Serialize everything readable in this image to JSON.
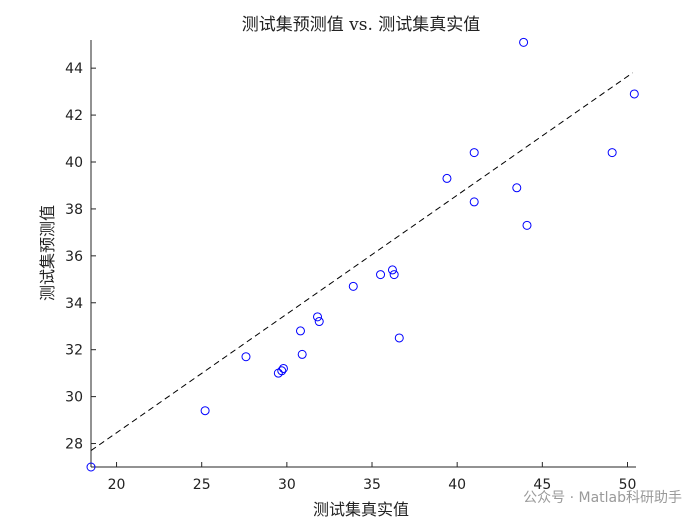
{
  "watermark": "公众号 · Matlab科研助手",
  "chart_data": {
    "type": "scatter",
    "title": "测试集预测值 vs. 测试集真实值",
    "xlabel": "测试集真实值",
    "ylabel": "测试集预测值",
    "xlim": [
      18.5,
      50.5
    ],
    "ylim": [
      27,
      45.2
    ],
    "xticks": [
      20,
      25,
      30,
      35,
      40,
      45,
      50
    ],
    "yticks": [
      28,
      30,
      32,
      34,
      36,
      38,
      40,
      42,
      44
    ],
    "grid": false,
    "marker_color": "#0000ff",
    "reference_line": {
      "style": "dashed",
      "color": "#000000",
      "points": [
        [
          18.5,
          27.7
        ],
        [
          50.3,
          43.8
        ]
      ]
    },
    "points": [
      {
        "x": 18.5,
        "y": 27.0
      },
      {
        "x": 25.2,
        "y": 29.4
      },
      {
        "x": 27.6,
        "y": 31.7
      },
      {
        "x": 29.5,
        "y": 31.0
      },
      {
        "x": 29.7,
        "y": 31.1
      },
      {
        "x": 29.8,
        "y": 31.2
      },
      {
        "x": 30.8,
        "y": 32.8
      },
      {
        "x": 30.9,
        "y": 31.8
      },
      {
        "x": 31.8,
        "y": 33.4
      },
      {
        "x": 31.9,
        "y": 33.2
      },
      {
        "x": 33.9,
        "y": 34.7
      },
      {
        "x": 35.5,
        "y": 35.2
      },
      {
        "x": 36.2,
        "y": 35.4
      },
      {
        "x": 36.3,
        "y": 35.2
      },
      {
        "x": 36.6,
        "y": 32.5
      },
      {
        "x": 39.4,
        "y": 39.3
      },
      {
        "x": 41.0,
        "y": 40.4
      },
      {
        "x": 41.0,
        "y": 38.3
      },
      {
        "x": 43.5,
        "y": 38.9
      },
      {
        "x": 43.9,
        "y": 45.1
      },
      {
        "x": 44.1,
        "y": 37.3
      },
      {
        "x": 49.1,
        "y": 40.4
      },
      {
        "x": 50.4,
        "y": 42.9
      }
    ]
  }
}
